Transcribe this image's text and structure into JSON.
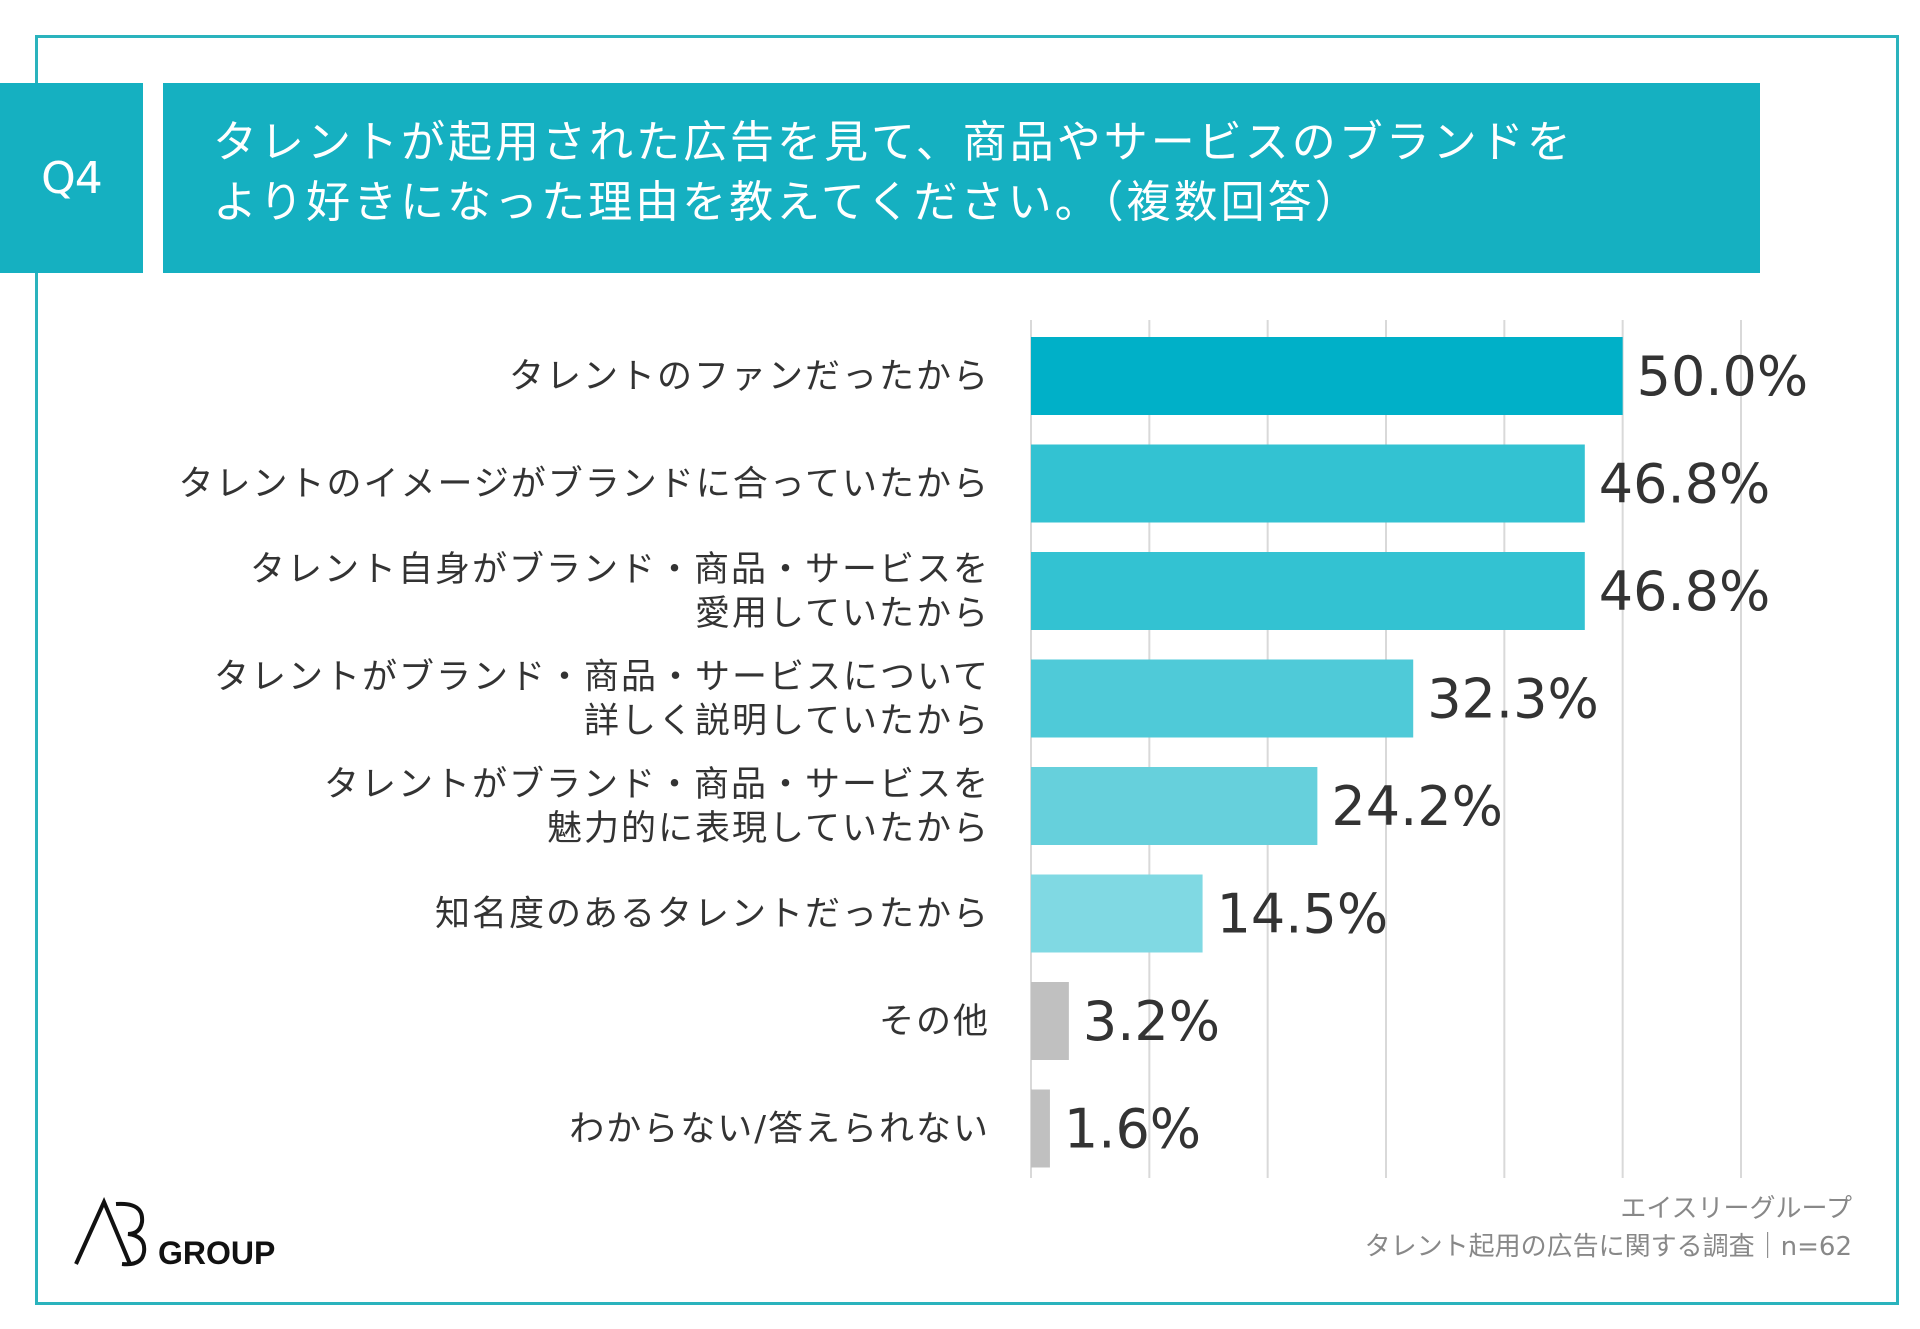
{
  "question": {
    "badge": "Q4",
    "line1": "タレントが起用された広告を見て、商品やサービスのブランドを",
    "line2": "より好きになった理由を教えてください。（複数回答）"
  },
  "chart_data": {
    "type": "bar",
    "orientation": "horizontal",
    "categories": [
      [
        "タレントのファンだったから"
      ],
      [
        "タレントのイメージがブランドに合っていたから"
      ],
      [
        "タレント自身がブランド・商品・サービスを",
        "愛用していたから"
      ],
      [
        "タレントがブランド・商品・サービスについて",
        "詳しく説明していたから"
      ],
      [
        "タレントがブランド・商品・サービスを",
        "魅力的に表現していたから"
      ],
      [
        "知名度のあるタレントだったから"
      ],
      [
        "その他"
      ],
      [
        "わからない/答えられない"
      ]
    ],
    "values": [
      50.0,
      46.8,
      46.8,
      32.3,
      24.2,
      14.5,
      3.2,
      1.6
    ],
    "value_labels": [
      "50.0%",
      "46.8%",
      "46.8%",
      "32.3%",
      "24.2%",
      "14.5%",
      "3.2%",
      "1.6%"
    ],
    "xlim": [
      0,
      60
    ],
    "grid": true,
    "colors": [
      "#00b0c8",
      "#33c2d2",
      "#33c2d2",
      "#4fcad8",
      "#66d0dc",
      "#80d9e3",
      "#c0c0c0",
      "#c0c0c0"
    ],
    "grid_color": "#d9d9d9"
  },
  "footer": {
    "company": "エイスリーグループ",
    "survey": "タレント起用の広告に関する調査｜n=62"
  },
  "logo": {
    "text": "GROUP"
  },
  "colors": {
    "accent": "#15b0c1",
    "frame": "#2ab3bd"
  }
}
